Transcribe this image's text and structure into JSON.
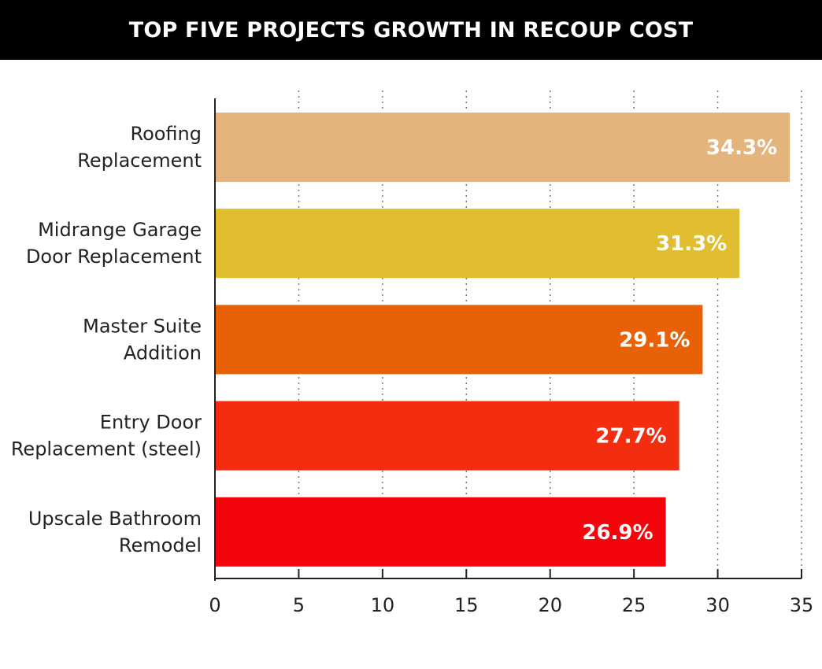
{
  "chart_data": {
    "type": "bar",
    "orientation": "horizontal",
    "title": "TOP FIVE PROJECTS GROWTH IN RECOUP COST",
    "categories": [
      [
        "Roofing",
        "Replacement"
      ],
      [
        "Midrange Garage",
        "Door Replacement"
      ],
      [
        "Master Suite",
        "Addition"
      ],
      [
        "Entry Door",
        "Replacement (steel)"
      ],
      [
        "Upscale Bathroom",
        "Remodel"
      ]
    ],
    "values": [
      34.3,
      31.3,
      29.1,
      27.7,
      26.9
    ],
    "data_labels": [
      "34.3%",
      "31.3%",
      "29.1%",
      "27.7%",
      "26.9%"
    ],
    "bar_colors": [
      "#E3B47C",
      "#E0BE2F",
      "#E86106",
      "#F32D10",
      "#F5040B"
    ],
    "xlim": [
      0,
      35
    ],
    "xticks": [
      "0",
      "5",
      "10",
      "15",
      "20",
      "25",
      "30",
      "35"
    ],
    "xtick_values": [
      0,
      5,
      10,
      15,
      20,
      25,
      30,
      35
    ],
    "grid": "vertical dotted",
    "legend": "none"
  }
}
